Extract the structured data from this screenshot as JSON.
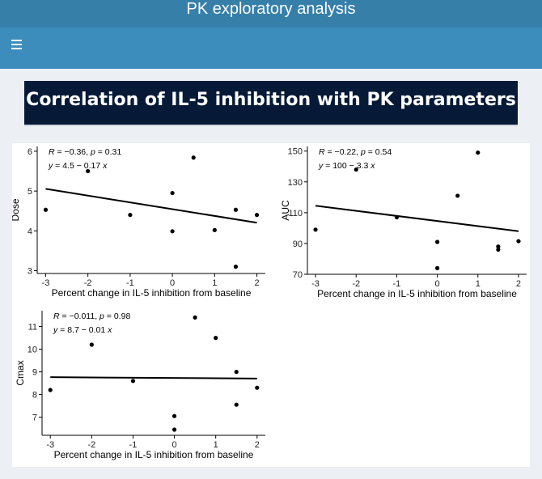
{
  "app": {
    "title": "PK exploratory analysis"
  },
  "navbar": {
    "menu_icon": "hamburger-icon"
  },
  "banner": {
    "title": "Correlation of IL-5 inhibition with PK parameters"
  },
  "colors": {
    "title_bar": "#367fa9",
    "navbar": "#3c8dbc",
    "banner": "#061a37",
    "background": "#ecf0f5"
  },
  "chart_data": [
    {
      "type": "scatter",
      "ylabel": "Dose",
      "xlabel": "Percent change in IL-5 inhibition from baseline",
      "annotation_r": "R = −0.36, p = 0.31",
      "annotation_eq": "y = 4.5 − 0.17 x",
      "xlim": [
        -3.2,
        2.2
      ],
      "ylim": [
        2.93,
        6.12
      ],
      "xticks": [
        -3,
        -2,
        -1,
        0,
        1,
        2
      ],
      "yticks": [
        3,
        4,
        5,
        6
      ],
      "points": [
        {
          "x": -3,
          "y": 4.53
        },
        {
          "x": -2,
          "y": 5.5
        },
        {
          "x": -1,
          "y": 4.4
        },
        {
          "x": 0,
          "y": 4.95
        },
        {
          "x": 0,
          "y": 3.99
        },
        {
          "x": 0.5,
          "y": 5.84
        },
        {
          "x": 1,
          "y": 4.02
        },
        {
          "x": 1.5,
          "y": 4.53
        },
        {
          "x": 1.5,
          "y": 3.1
        },
        {
          "x": 2,
          "y": 4.4
        }
      ],
      "fit": {
        "intercept": 4.545,
        "slope": -0.17
      }
    },
    {
      "type": "scatter",
      "ylabel": "AUC",
      "xlabel": "Percent change in IL-5 inhibition from baseline",
      "annotation_r": "R = −0.22, p = 0.54",
      "annotation_eq": "y = 100 − 3.3 x",
      "xlim": [
        -3.2,
        2.2
      ],
      "ylim": [
        70,
        153
      ],
      "xticks": [
        -3,
        -2,
        -1,
        0,
        1,
        2
      ],
      "yticks": [
        70,
        90,
        110,
        130,
        150
      ],
      "points": [
        {
          "x": -3,
          "y": 99
        },
        {
          "x": -2,
          "y": 138
        },
        {
          "x": -1,
          "y": 107
        },
        {
          "x": 0,
          "y": 91
        },
        {
          "x": 0,
          "y": 74
        },
        {
          "x": 0.5,
          "y": 121
        },
        {
          "x": 1,
          "y": 149
        },
        {
          "x": 1.5,
          "y": 88
        },
        {
          "x": 1.5,
          "y": 86
        },
        {
          "x": 2,
          "y": 91.5
        }
      ],
      "fit": {
        "intercept": 104.6,
        "slope": -3.3
      }
    },
    {
      "type": "scatter",
      "ylabel": "Cmax",
      "xlabel": "Percent change in IL-5 inhibition from baseline",
      "annotation_r": "R = −0.011, p = 0.98",
      "annotation_eq": "y = 8.7 − 0.01 x",
      "xlim": [
        -3.2,
        2.2
      ],
      "ylim": [
        6.2,
        11.7
      ],
      "xticks": [
        -3,
        -2,
        -1,
        0,
        1,
        2
      ],
      "yticks": [
        7,
        8,
        9,
        10,
        11
      ],
      "points": [
        {
          "x": -3,
          "y": 8.2
        },
        {
          "x": -2,
          "y": 10.2
        },
        {
          "x": -1,
          "y": 8.6
        },
        {
          "x": 0,
          "y": 7.05
        },
        {
          "x": 0,
          "y": 6.45
        },
        {
          "x": 0.5,
          "y": 11.4
        },
        {
          "x": 1,
          "y": 10.5
        },
        {
          "x": 1.5,
          "y": 9.0
        },
        {
          "x": 1.5,
          "y": 7.55
        },
        {
          "x": 2,
          "y": 8.3
        }
      ],
      "fit": {
        "intercept": 8.73,
        "slope": -0.012
      }
    }
  ]
}
